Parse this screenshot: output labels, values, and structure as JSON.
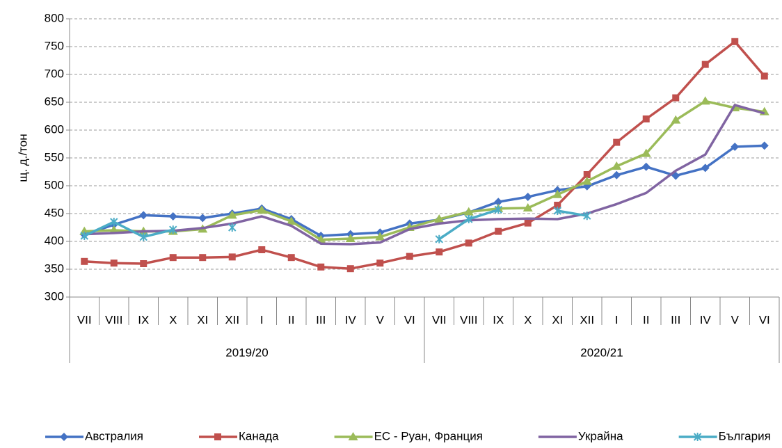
{
  "chart_data": {
    "type": "line",
    "y_label": "щ. д./тон",
    "categories": [
      "VII",
      "VIII",
      "IX",
      "X",
      "XI",
      "XII",
      "I",
      "II",
      "III",
      "IV",
      "V",
      "VI",
      "VII",
      "VIII",
      "IX",
      "X",
      "XI",
      "XII",
      "I",
      "II",
      "III",
      "IV",
      "V",
      "VI"
    ],
    "groups": [
      "2019/20",
      "2020/21"
    ],
    "ylim": [
      300,
      800
    ],
    "yticks": [
      300,
      350,
      400,
      450,
      500,
      550,
      600,
      650,
      700,
      750,
      800
    ],
    "grid": true,
    "legend": "bottom",
    "series": [
      {
        "name": "Австралия",
        "color": "#4472c4",
        "marker": "diamond",
        "values": [
          412,
          430,
          447,
          445,
          442,
          450,
          459,
          440,
          410,
          413,
          416,
          432,
          439,
          452,
          471,
          480,
          492,
          499,
          519,
          534,
          518,
          532,
          570,
          572
        ]
      },
      {
        "name": "Канада",
        "color": "#c0504d",
        "marker": "square",
        "values": [
          364,
          361,
          360,
          371,
          371,
          372,
          385,
          371,
          354,
          351,
          361,
          373,
          381,
          397,
          418,
          433,
          465,
          520,
          578,
          620,
          658,
          718,
          759,
          697
        ]
      },
      {
        "name": "ЕС - Руан, Франция",
        "color": "#9bbb59",
        "marker": "triangle",
        "values": [
          418,
          420,
          418,
          418,
          422,
          447,
          456,
          436,
          403,
          405,
          408,
          425,
          440,
          453,
          459,
          460,
          484,
          508,
          535,
          558,
          618,
          652,
          640,
          633
        ]
      },
      {
        "name": "Украйна",
        "color": "#8064a2",
        "marker": "none",
        "values": [
          413,
          415,
          418,
          419,
          424,
          432,
          445,
          428,
          396,
          395,
          398,
          422,
          432,
          438,
          440,
          441,
          440,
          450,
          467,
          487,
          527,
          556,
          645,
          630
        ]
      },
      {
        "name": "България",
        "color": "#4bacc6",
        "marker": "star",
        "values": [
          410,
          435,
          408,
          421,
          null,
          425,
          null,
          null,
          null,
          null,
          null,
          null,
          404,
          440,
          457,
          null,
          455,
          446,
          null,
          null,
          null,
          null,
          null,
          null
        ]
      }
    ]
  }
}
